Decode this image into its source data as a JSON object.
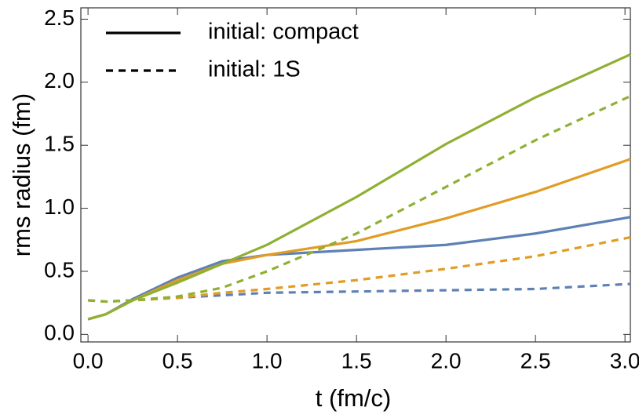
{
  "chart_data": {
    "type": "line",
    "xlabel": "t (fm/c)",
    "ylabel": "rms radius (fm)",
    "x": [
      0,
      0.1,
      0.25,
      0.5,
      0.75,
      1.0,
      1.5,
      2.0,
      2.5,
      3.03
    ],
    "series": [
      {
        "color": "#5e81b5",
        "style": "solid",
        "values": [
          0.12,
          0.16,
          0.28,
          0.45,
          0.58,
          0.63,
          0.67,
          0.71,
          0.8,
          0.93
        ]
      },
      {
        "color": "#e19c24",
        "style": "solid",
        "values": [
          0.12,
          0.16,
          0.27,
          0.43,
          0.56,
          0.63,
          0.74,
          0.92,
          1.13,
          1.39
        ]
      },
      {
        "color": "#8fb032",
        "style": "solid",
        "values": [
          0.12,
          0.16,
          0.27,
          0.41,
          0.56,
          0.71,
          1.09,
          1.51,
          1.88,
          2.22
        ]
      },
      {
        "color": "#5e81b5",
        "style": "dashed",
        "values": [
          0.27,
          0.26,
          0.27,
          0.29,
          0.31,
          0.33,
          0.34,
          0.35,
          0.36,
          0.4
        ]
      },
      {
        "color": "#e19c24",
        "style": "dashed",
        "values": [
          0.27,
          0.26,
          0.27,
          0.29,
          0.33,
          0.36,
          0.43,
          0.52,
          0.62,
          0.77
        ]
      },
      {
        "color": "#8fb032",
        "style": "dashed",
        "values": [
          0.27,
          0.26,
          0.27,
          0.3,
          0.37,
          0.5,
          0.8,
          1.17,
          1.54,
          1.89
        ]
      }
    ],
    "legend": [
      {
        "label": "initial: compact",
        "style": "solid"
      },
      {
        "label": "initial: 1S",
        "style": "dashed"
      }
    ],
    "xlim": [
      -0.04,
      3.03
    ],
    "ylim": [
      -0.06,
      2.59
    ],
    "xticks": [
      {
        "value": 0,
        "label": "0.0"
      },
      0.5,
      {
        "value": 1,
        "label": "1.0"
      },
      1.5,
      {
        "value": 2,
        "label": "2.0"
      },
      2.5,
      {
        "value": 3,
        "label": "3.0"
      }
    ],
    "yticks": [
      {
        "value": 0,
        "label": "0.0"
      },
      0.5,
      {
        "value": 1,
        "label": "1.0"
      },
      1.5,
      {
        "value": 2,
        "label": "2.0"
      },
      2.5
    ]
  }
}
